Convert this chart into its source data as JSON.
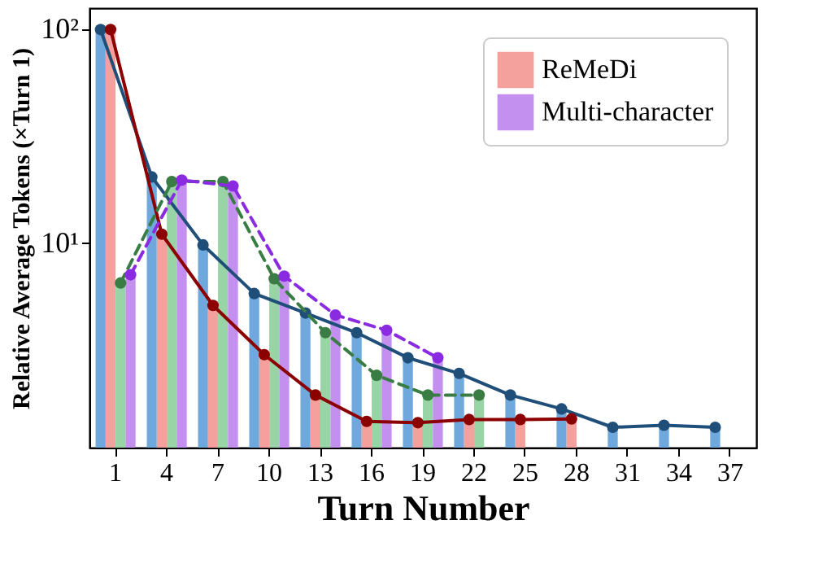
{
  "chart_data": {
    "type": "bar",
    "xlabel": "Turn Number",
    "ylabel": "Relative Average Tokens (×Turn 1)",
    "categories": [
      "1",
      "4",
      "7",
      "10",
      "13",
      "16",
      "19",
      "22",
      "25",
      "28",
      "31",
      "34",
      "37"
    ],
    "log": "y",
    "ylim": [
      1.1,
      126
    ],
    "yticks": [
      {
        "value": 10,
        "label": "10¹"
      },
      {
        "value": 100,
        "label": "10²"
      }
    ],
    "grid": false,
    "legend": "top right",
    "marker": "circle",
    "series": [
      {
        "color": "#6fa8dc",
        "values": [
          100,
          20.4,
          9.8,
          5.8,
          4.7,
          3.8,
          2.9,
          2.45,
          1.94,
          1.67,
          1.37,
          1.4,
          1.37
        ]
      },
      {
        "name": "ReMeDi",
        "color": "#f4a09c",
        "values": [
          100,
          11.0,
          5.1,
          3.0,
          1.94,
          1.46,
          1.44,
          1.49,
          1.49,
          1.5,
          null,
          null,
          null
        ]
      },
      {
        "color": "#98d4a6",
        "values": [
          6.5,
          19.4,
          19.4,
          6.8,
          3.8,
          2.4,
          1.94,
          1.94,
          null,
          null,
          null,
          null,
          null
        ]
      },
      {
        "name": "Multi-character",
        "color": "#c490f0",
        "values": [
          7.1,
          19.7,
          18.5,
          7.0,
          4.6,
          3.9,
          2.9,
          null,
          null,
          null,
          null,
          null,
          null
        ]
      },
      {
        "type": "line",
        "line_style": "solid",
        "color": "#1f4e79",
        "values": [
          100,
          20.4,
          9.8,
          5.8,
          4.7,
          3.8,
          2.9,
          2.45,
          1.94,
          1.67,
          1.37,
          1.4,
          1.37
        ]
      },
      {
        "type": "line",
        "line_style": "solid",
        "color": "#8b0000",
        "values": [
          100,
          11.0,
          5.1,
          3.0,
          1.94,
          1.46,
          1.44,
          1.49,
          1.49,
          1.5,
          null,
          null,
          null
        ]
      },
      {
        "type": "line",
        "line_style": "dashed",
        "color": "#3a7d44",
        "values": [
          6.5,
          19.4,
          19.4,
          6.8,
          3.8,
          2.4,
          1.94,
          1.94,
          null,
          null,
          null,
          null,
          null
        ]
      },
      {
        "type": "line",
        "line_style": "dashed",
        "color": "#8a2be2",
        "values": [
          7.1,
          19.7,
          18.5,
          7.0,
          4.6,
          3.9,
          2.9,
          null,
          null,
          null,
          null,
          null,
          null
        ]
      }
    ]
  }
}
